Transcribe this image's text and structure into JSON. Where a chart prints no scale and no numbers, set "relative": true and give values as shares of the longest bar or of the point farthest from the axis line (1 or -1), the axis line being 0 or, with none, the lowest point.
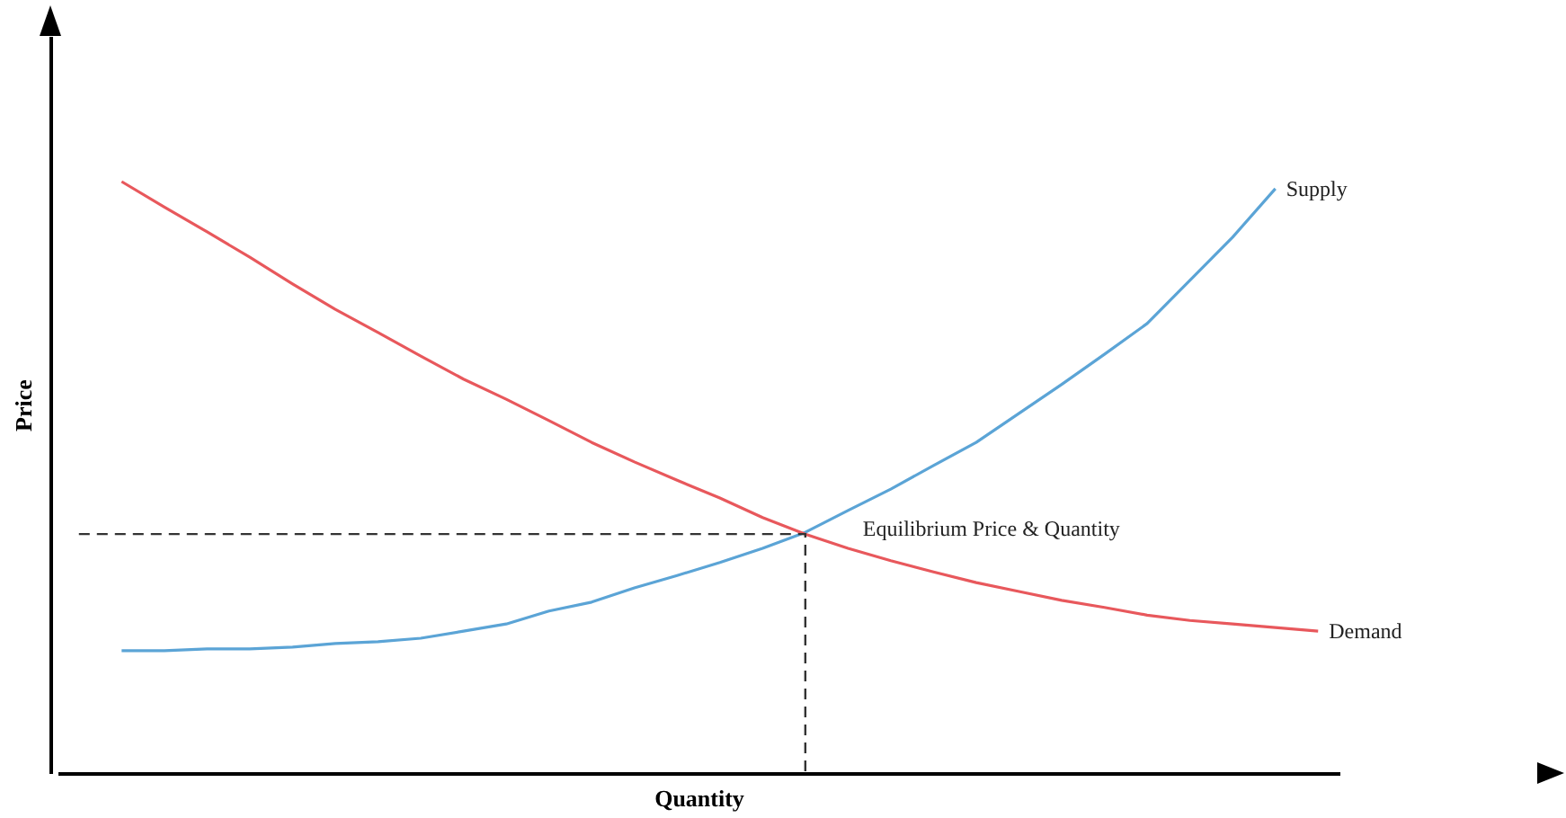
{
  "chart_data": {
    "type": "line",
    "relative": true,
    "xlabel": "Quantity",
    "ylabel": "Price",
    "legend": false,
    "categories": [
      null,
      null,
      null,
      null,
      null,
      null,
      null,
      null,
      null,
      null,
      null,
      null,
      null,
      null,
      null,
      null,
      null,
      null,
      null,
      null,
      null,
      null,
      null,
      null,
      null,
      null,
      null,
      null,
      null,
      null
    ],
    "series": [
      {
        "name": "Supply",
        "color": "#5ba4d6",
        "values": [
          null,
          0.207,
          0.207,
          0.21,
          0.21,
          0.213,
          0.219,
          0.222,
          0.228,
          0.24,
          0.252,
          0.274,
          0.289,
          0.313,
          0.334,
          0.356,
          0.38,
          0.407,
          0.444,
          0.48,
          0.52,
          0.559,
          0.608,
          0.657,
          0.708,
          0.76,
          0.833,
          0.906,
          0.988,
          null
        ]
      },
      {
        "name": "Demand",
        "color": "#e8585c",
        "values": [
          null,
          1.0,
          0.957,
          0.915,
          0.872,
          0.827,
          0.784,
          0.745,
          0.705,
          0.666,
          0.632,
          0.596,
          0.559,
          0.526,
          0.495,
          0.465,
          0.432,
          0.404,
          0.38,
          0.359,
          0.34,
          0.322,
          0.307,
          0.292,
          0.28,
          0.267,
          0.258,
          0.252,
          0.246,
          0.24
        ]
      }
    ],
    "ref_lines": [
      {
        "axis": "y",
        "value": 0.404,
        "line_style": "dashed",
        "color": "#333333"
      }
    ],
    "annotations": [
      "Equilibrium Price & Quantity"
    ]
  }
}
